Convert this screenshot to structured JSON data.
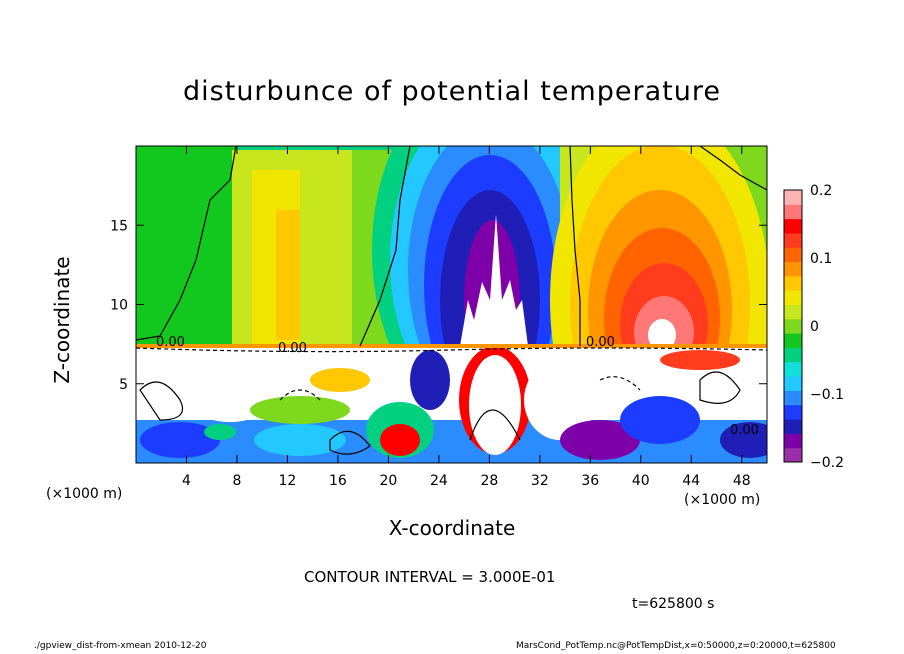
{
  "chart_data": {
    "type": "heatmap",
    "title": "disturbunce of potential temperature",
    "xlabel": "X-coordinate",
    "ylabel": "Z-coordinate",
    "x_unit_label": "(×1000 m)",
    "x_ticks": [
      4,
      8,
      12,
      16,
      20,
      24,
      28,
      32,
      36,
      40,
      44,
      48
    ],
    "y_ticks": [
      5,
      10,
      15
    ],
    "xlim": [
      0,
      50
    ],
    "ylim": [
      0,
      20
    ],
    "colorbar": {
      "ticks": [
        "0.2",
        "0.1",
        "0",
        "−0.1",
        "−0.2"
      ],
      "range": [
        -0.2,
        0.2
      ],
      "colors": [
        "#9b2fa8",
        "#7d00a8",
        "#1f1fb8",
        "#1c3dff",
        "#2a8cff",
        "#22c8ff",
        "#12e0d8",
        "#00d080",
        "#12c81e",
        "#7ed81e",
        "#c8e61e",
        "#f0e600",
        "#ffc800",
        "#ff9600",
        "#ff6400",
        "#ff3c1e",
        "#ff0000",
        "#ff7878",
        "#ffb4b4"
      ]
    },
    "contour_label": "0.00",
    "grid": false
  },
  "contour_text": "CONTOUR INTERVAL = 3.000E-01",
  "time_text": "t=625800 s",
  "footer_left": "./gpview_dist-from-xmean  2010-12-20",
  "footer_right": "MarsCond_PotTemp.nc@PotTempDist,x=0:50000,z=0:20000,t=625800"
}
